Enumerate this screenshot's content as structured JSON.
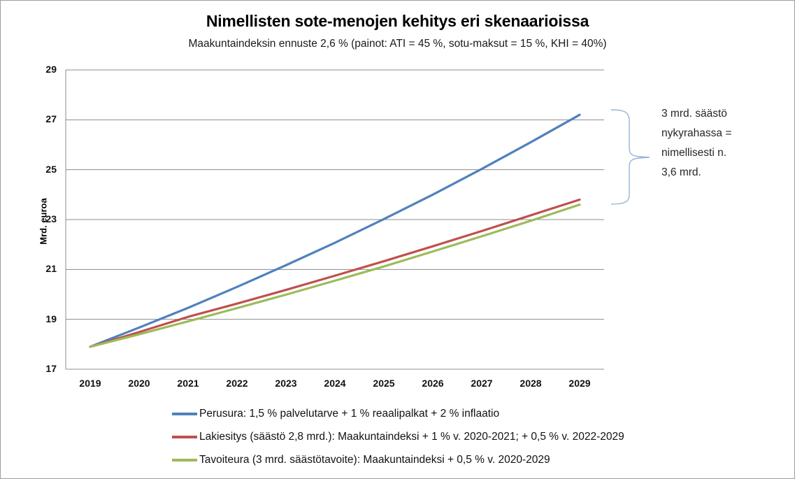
{
  "chart_data": {
    "type": "line",
    "title": "Nimellisten sote-menojen kehitys eri skenaarioissa",
    "subtitle": "Maakuntaindeksin ennuste 2,6 % (painot: ATI = 45 %, sotu-maksut = 15 %, KHI = 40%)",
    "ylabel": "Mrd. euroa",
    "xlabel": "",
    "ylim": [
      17,
      29
    ],
    "yticks": [
      29,
      27,
      25,
      23,
      21,
      19,
      17
    ],
    "grid": "horizontal",
    "legend_position": "bottom-left",
    "categories": [
      "2019",
      "2020",
      "2021",
      "2022",
      "2023",
      "2024",
      "2025",
      "2026",
      "2027",
      "2028",
      "2029"
    ],
    "series": [
      {
        "name": "Perusura: 1,5 % palvelutarve + 1 % reaalipalkat + 2 % inflaatio",
        "color": "#4F81BD",
        "values": [
          17.9,
          18.67,
          19.46,
          20.3,
          21.17,
          22.07,
          23.02,
          24.0,
          25.03,
          26.1,
          27.2
        ]
      },
      {
        "name": "Lakiesitys (säästö 2,8 mrd.): Maakuntaindeksi + 1 % v. 2020-2021; + 0,5 % v. 2022-2029",
        "color": "#C0504D",
        "values": [
          17.9,
          18.49,
          19.1,
          19.63,
          20.18,
          20.75,
          21.33,
          21.93,
          22.54,
          23.17,
          23.8
        ]
      },
      {
        "name": "Tavoiteura (3 mrd. säästötavoite): Maakuntaindeksi + 0,5 % v. 2020-2029",
        "color": "#9BBB59",
        "values": [
          17.9,
          18.4,
          18.92,
          19.45,
          19.99,
          20.55,
          21.12,
          21.72,
          22.33,
          22.95,
          23.6
        ]
      }
    ]
  },
  "annotation": {
    "lines": [
      "3 mrd. säästö",
      "nykyrahassa =",
      "nimellisesti n.",
      "3,6 mrd."
    ]
  },
  "colors": {
    "gridline": "#8c8c8c",
    "axis": "#8c8c8c",
    "brace": "#95B3D7",
    "background": "#ffffff",
    "border": "#9d9d9d"
  }
}
